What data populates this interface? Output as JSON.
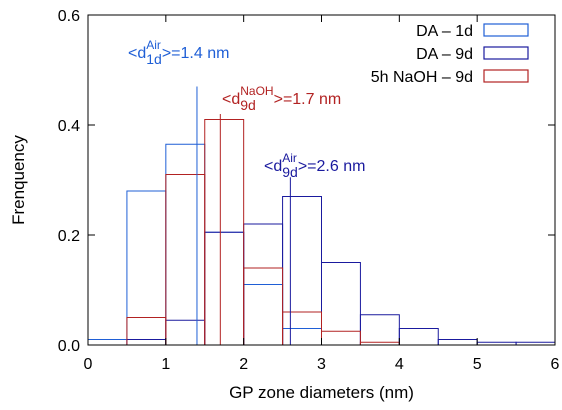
{
  "chart_data": {
    "type": "bar",
    "title": "",
    "xlabel": "GP zone diameters (nm)",
    "ylabel": "Frenquency",
    "xlim": [
      0,
      6
    ],
    "ylim": [
      0,
      0.6
    ],
    "x_ticks": [
      "0",
      "1",
      "2",
      "3",
      "4",
      "5",
      "6"
    ],
    "y_ticks": [
      "0.0",
      "0.2",
      "0.4",
      "0.6"
    ],
    "bin_width": 0.5,
    "legend_position": "top-right",
    "series": [
      {
        "name": "DA – 1d",
        "color": "#1f5fd6",
        "bins": [
          {
            "x0": -0.1,
            "x1": 0.5,
            "y": 0.01
          },
          {
            "x0": 0.5,
            "x1": 1.0,
            "y": 0.28
          },
          {
            "x0": 1.0,
            "x1": 1.5,
            "y": 0.365
          },
          {
            "x0": 1.5,
            "x1": 2.0,
            "y": 0.205
          },
          {
            "x0": 2.0,
            "x1": 2.5,
            "y": 0.11
          },
          {
            "x0": 2.5,
            "x1": 3.0,
            "y": 0.03
          }
        ]
      },
      {
        "name": "DA – 9d",
        "color": "#1a1a9e",
        "bins": [
          {
            "x0": 0.5,
            "x1": 1.0,
            "y": 0.01
          },
          {
            "x0": 1.0,
            "x1": 1.5,
            "y": 0.045
          },
          {
            "x0": 1.5,
            "x1": 2.0,
            "y": 0.205
          },
          {
            "x0": 2.0,
            "x1": 2.5,
            "y": 0.22
          },
          {
            "x0": 2.5,
            "x1": 3.0,
            "y": 0.27
          },
          {
            "x0": 3.0,
            "x1": 3.5,
            "y": 0.15
          },
          {
            "x0": 3.5,
            "x1": 4.0,
            "y": 0.055
          },
          {
            "x0": 4.0,
            "x1": 4.5,
            "y": 0.03
          },
          {
            "x0": 4.5,
            "x1": 5.0,
            "y": 0.01
          },
          {
            "x0": 5.0,
            "x1": 5.5,
            "y": 0.005
          },
          {
            "x0": 5.5,
            "x1": 6.0,
            "y": 0.005
          }
        ]
      },
      {
        "name": "5h NaOH – 9d",
        "color": "#b22222",
        "bins": [
          {
            "x0": 0.5,
            "x1": 1.0,
            "y": 0.05
          },
          {
            "x0": 1.0,
            "x1": 1.5,
            "y": 0.31
          },
          {
            "x0": 1.5,
            "x1": 2.0,
            "y": 0.41
          },
          {
            "x0": 2.0,
            "x1": 2.5,
            "y": 0.14
          },
          {
            "x0": 2.5,
            "x1": 3.0,
            "y": 0.06
          },
          {
            "x0": 3.0,
            "x1": 3.5,
            "y": 0.025
          },
          {
            "x0": 3.5,
            "x1": 4.0,
            "y": 0.005
          }
        ]
      }
    ],
    "annotations": [
      {
        "name": "mean-air-1d",
        "x": 1.4,
        "y_top": 0.47,
        "color": "#1f5fd6",
        "prefix": "<d",
        "sub": "1d",
        "sup": "Air",
        "suffix": ">=1.4 nm"
      },
      {
        "name": "mean-naoh-9d",
        "x": 1.7,
        "y_top": 0.42,
        "color": "#b22222",
        "prefix": "<d",
        "sub": "9d",
        "sup": "NaOH",
        "suffix": ">=1.7 nm"
      },
      {
        "name": "mean-air-9d",
        "x": 2.6,
        "y_top": 0.305,
        "color": "#1a1a9e",
        "prefix": "<d",
        "sub": "9d",
        "sup": "Air",
        "suffix": ">=2.6 nm"
      }
    ]
  }
}
